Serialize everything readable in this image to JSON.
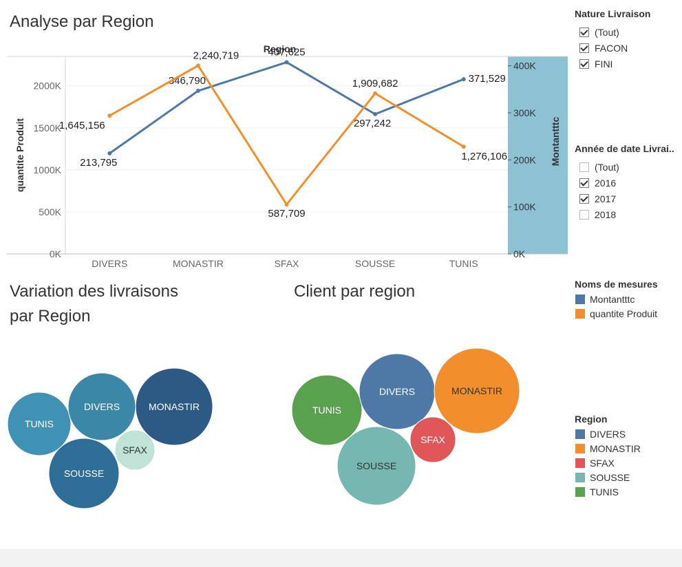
{
  "titles": {
    "main": "Analyse  par Region",
    "variation_line1": "Variation des livraisons",
    "variation_line2": "par Region",
    "client": "Client par region"
  },
  "filters": {
    "nature": {
      "title": "Nature Livraison",
      "items": [
        {
          "label": "(Tout)",
          "checked": true
        },
        {
          "label": "FACON",
          "checked": true
        },
        {
          "label": "FINI",
          "checked": true
        }
      ]
    },
    "annee": {
      "title": "Année de date Livrai..",
      "items": [
        {
          "label": "(Tout)",
          "checked": false
        },
        {
          "label": "2016",
          "checked": true
        },
        {
          "label": "2017",
          "checked": true
        },
        {
          "label": "2018",
          "checked": false
        }
      ]
    }
  },
  "legend_measures": {
    "title": "Noms de mesures",
    "items": [
      {
        "label": "Montantttc",
        "color": "#4e79a7"
      },
      {
        "label": "quantite Produit",
        "color": "#f28e2b"
      }
    ]
  },
  "legend_region": {
    "title": "Region",
    "items": [
      {
        "label": "DIVERS",
        "color": "#4e79a7"
      },
      {
        "label": "MONASTIR",
        "color": "#f28e2b"
      },
      {
        "label": "SFAX",
        "color": "#e15759"
      },
      {
        "label": "SOUSSE",
        "color": "#76b7b2"
      },
      {
        "label": "TUNIS",
        "color": "#59a14f"
      }
    ]
  },
  "chart_data": [
    {
      "type": "line",
      "title": "Analyse  par Region",
      "xlabel": "Region",
      "categories": [
        "DIVERS",
        "MONASTIR",
        "SFAX",
        "SOUSSE",
        "TUNIS"
      ],
      "left_axis": {
        "label": "quantite Produit",
        "ylim": [
          0,
          2350000
        ],
        "ticks": [
          "0K",
          "500K",
          "1000K",
          "1500K",
          "2000K"
        ],
        "tick_values": [
          0,
          500000,
          1000000,
          1500000,
          2000000
        ]
      },
      "right_axis": {
        "label": "Montantttc",
        "ylim": [
          0,
          420000
        ],
        "ticks": [
          "0K",
          "100K",
          "200K",
          "300K",
          "400K"
        ],
        "tick_values": [
          0,
          100000,
          200000,
          300000,
          400000
        ],
        "shaded": true,
        "shade_color": "#8cc2d4"
      },
      "series": [
        {
          "name": "Montantttc",
          "axis": "right",
          "color": "#4e79a7",
          "values": [
            213795,
            346790,
            407625,
            297242,
            371529
          ],
          "labels": [
            "213,795",
            "346,790",
            "407,625",
            "297,242",
            "371,529"
          ]
        },
        {
          "name": "quantite Produit",
          "axis": "left",
          "color": "#f28e2b",
          "values": [
            1645156,
            2240719,
            587709,
            1909682,
            1276106
          ],
          "labels": [
            "1,645,156",
            "2,240,719",
            "587,709",
            "1,909,682",
            "1,276,106"
          ]
        }
      ]
    },
    {
      "type": "bubble",
      "title": "Variation des livraisons par Region",
      "bubbles": [
        {
          "label": "TUNIS",
          "color": "#3f92b3",
          "text_color": "#ffffff"
        },
        {
          "label": "DIVERS",
          "color": "#3a87a8",
          "text_color": "#ffffff"
        },
        {
          "label": "MONASTIR",
          "color": "#2d5985",
          "text_color": "#ffffff"
        },
        {
          "label": "SFAX",
          "color": "#bfe3d6",
          "text_color": "#333333"
        },
        {
          "label": "SOUSSE",
          "color": "#2e6d96",
          "text_color": "#ffffff"
        }
      ]
    },
    {
      "type": "bubble",
      "title": "Client par region",
      "bubbles": [
        {
          "label": "TUNIS",
          "color": "#59a14f",
          "text_color": "#ffffff"
        },
        {
          "label": "DIVERS",
          "color": "#4e79a7",
          "text_color": "#ffffff"
        },
        {
          "label": "MONASTIR",
          "color": "#f28e2b",
          "text_color": "#333333"
        },
        {
          "label": "SFAX",
          "color": "#e15759",
          "text_color": "#ffffff"
        },
        {
          "label": "SOUSSE",
          "color": "#76b7b2",
          "text_color": "#333333"
        }
      ]
    }
  ]
}
